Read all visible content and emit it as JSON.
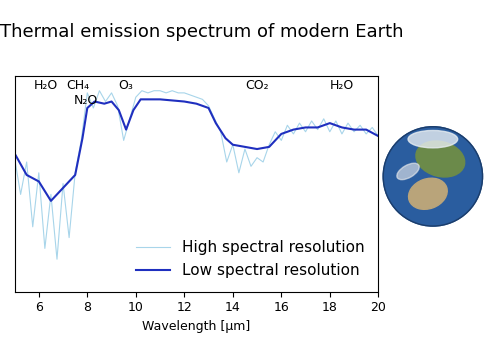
{
  "chart_data": {
    "type": "line",
    "title": "Thermal emission spectrum of modern Earth",
    "x_label": "Wavelength [μm]",
    "xlim": [
      5,
      20
    ],
    "xticks": [
      6,
      8,
      10,
      12,
      14,
      16,
      18,
      20
    ],
    "ylim": [
      0,
      1
    ],
    "tick_labels": "x",
    "grid": false,
    "legend": "lower right",
    "annotations": [
      {
        "text": "H₂O",
        "x": 6.3
      },
      {
        "text": "CH₄",
        "x": 7.6
      },
      {
        "text": "N₂O",
        "x": 7.95
      },
      {
        "text": "O₃",
        "x": 9.6
      },
      {
        "text": "CO₂",
        "x": 15.0
      },
      {
        "text": "H₂O",
        "x": 18.5
      }
    ],
    "series": [
      {
        "name": "High spectral resolution",
        "color": "#a8d5ea",
        "x": [
          5.0,
          5.25,
          5.5,
          5.75,
          6.0,
          6.25,
          6.5,
          6.75,
          7.0,
          7.25,
          7.5,
          7.75,
          8.0,
          8.25,
          8.5,
          8.75,
          9.0,
          9.25,
          9.5,
          9.75,
          10.0,
          10.25,
          10.5,
          10.75,
          11.0,
          11.25,
          11.5,
          11.75,
          12.0,
          12.25,
          12.5,
          12.75,
          13.0,
          13.25,
          13.5,
          13.75,
          14.0,
          14.25,
          14.5,
          14.75,
          15.0,
          15.25,
          15.5,
          15.75,
          16.0,
          16.25,
          16.5,
          16.75,
          17.0,
          17.25,
          17.5,
          17.75,
          18.0,
          18.25,
          18.5,
          18.75,
          19.0,
          19.25,
          19.5,
          19.75,
          20.0
        ],
        "values": [
          0.62,
          0.45,
          0.6,
          0.3,
          0.55,
          0.2,
          0.45,
          0.15,
          0.5,
          0.25,
          0.55,
          0.7,
          0.92,
          0.85,
          0.93,
          0.88,
          0.92,
          0.86,
          0.7,
          0.8,
          0.9,
          0.93,
          0.92,
          0.93,
          0.93,
          0.92,
          0.93,
          0.92,
          0.92,
          0.91,
          0.9,
          0.89,
          0.86,
          0.8,
          0.74,
          0.6,
          0.68,
          0.55,
          0.66,
          0.58,
          0.62,
          0.6,
          0.68,
          0.74,
          0.7,
          0.77,
          0.73,
          0.78,
          0.74,
          0.79,
          0.75,
          0.8,
          0.74,
          0.79,
          0.73,
          0.78,
          0.74,
          0.77,
          0.73,
          0.76,
          0.72
        ]
      },
      {
        "name": "Low spectral resolution",
        "color": "#1f2fbf",
        "x": [
          5,
          5.5,
          6,
          6.5,
          7,
          7.5,
          7.8,
          8,
          8.3,
          8.7,
          9,
          9.3,
          9.6,
          9.9,
          10.2,
          11,
          12,
          12.5,
          13,
          13.3,
          13.7,
          14,
          14.5,
          15,
          15.5,
          16,
          16.5,
          17,
          17.5,
          18,
          18.5,
          19,
          19.5,
          20
        ],
        "values": [
          0.64,
          0.54,
          0.51,
          0.42,
          0.48,
          0.54,
          0.71,
          0.85,
          0.88,
          0.87,
          0.88,
          0.84,
          0.75,
          0.84,
          0.89,
          0.89,
          0.88,
          0.87,
          0.85,
          0.78,
          0.71,
          0.68,
          0.67,
          0.66,
          0.67,
          0.73,
          0.75,
          0.76,
          0.76,
          0.78,
          0.76,
          0.75,
          0.75,
          0.72
        ]
      }
    ]
  }
}
